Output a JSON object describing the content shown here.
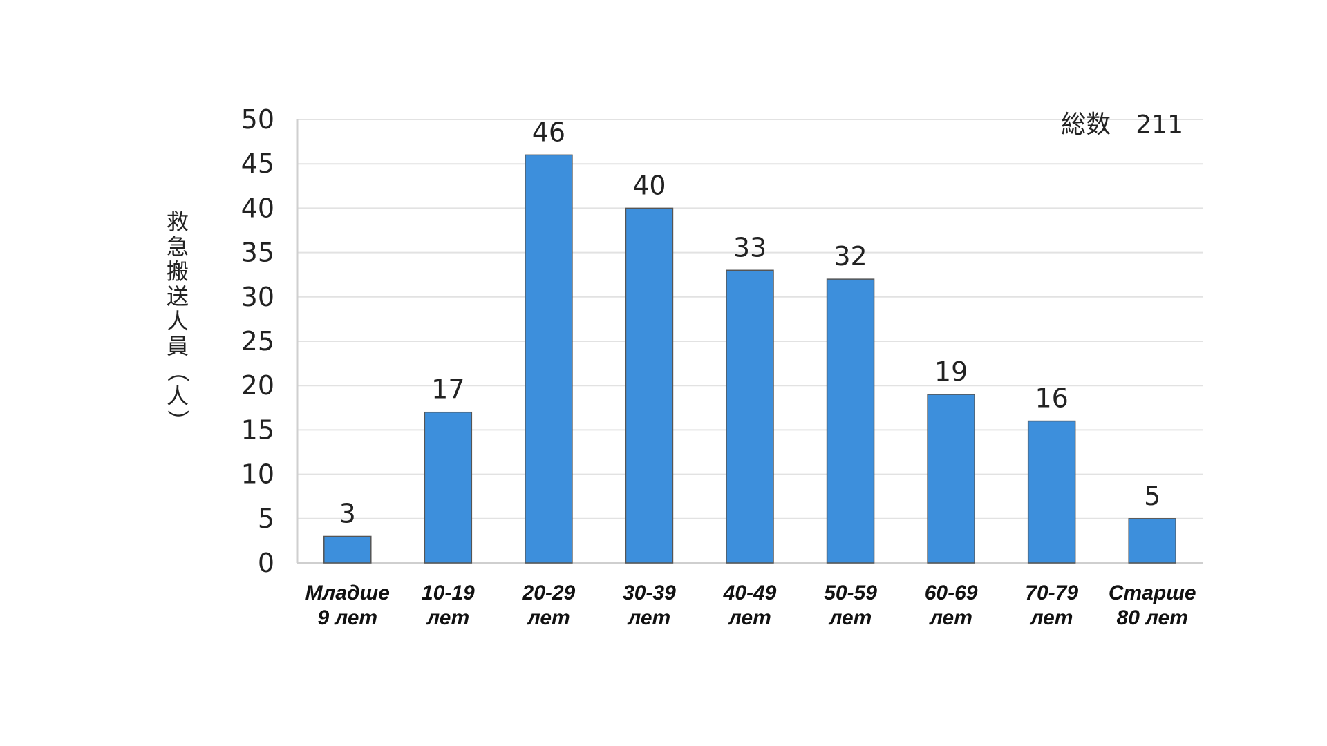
{
  "chart_data": {
    "type": "bar",
    "categories": [
      [
        "Младше",
        "9 лет"
      ],
      [
        "10-19",
        "лет"
      ],
      [
        "20-29",
        "лет"
      ],
      [
        "30-39",
        "лет"
      ],
      [
        "40-49",
        "лет"
      ],
      [
        "50-59",
        "лет"
      ],
      [
        "60-69",
        "лет"
      ],
      [
        "70-79",
        "лет"
      ],
      [
        "Старше",
        "80 лет"
      ]
    ],
    "values": [
      3,
      17,
      46,
      40,
      33,
      32,
      19,
      16,
      5
    ],
    "data_labels": [
      "3",
      "17",
      "46",
      "40",
      "33",
      "32",
      "19",
      "16",
      "5"
    ],
    "ylabel": "救急搬送人員（人）",
    "ylim": [
      0,
      50
    ],
    "yticks": [
      0,
      5,
      10,
      15,
      20,
      25,
      30,
      35,
      40,
      45,
      50
    ],
    "annotation": "総数　211",
    "grid": true,
    "colors": {
      "bar": "#3d8fdc",
      "bar_edge": "#555555",
      "grid": "#e2e2e2"
    }
  }
}
